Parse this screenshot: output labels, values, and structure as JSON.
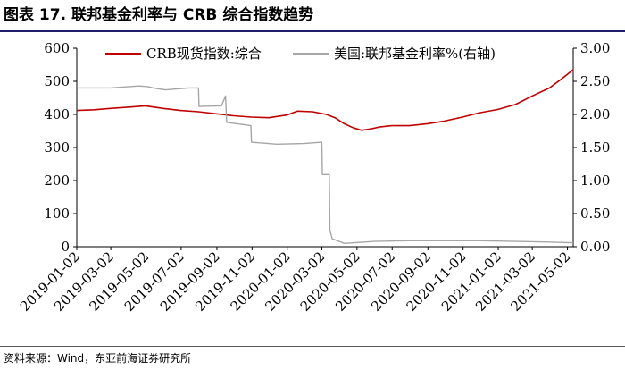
{
  "figure": {
    "title": "图表 17. 联邦基金利率与 CRB 综合指数趋势",
    "source": "资料来源：Wind，东亚前海证券研究所"
  },
  "colors": {
    "crb": "#c00000",
    "fedfunds": "#a6a6a6",
    "title_rule": "#1f1f6b"
  },
  "chart_data": {
    "type": "line",
    "x_tick_labels": [
      "2019-01-02",
      "2019-03-02",
      "2019-05-02",
      "2019-07-02",
      "2019-09-02",
      "2019-11-02",
      "2020-01-02",
      "2020-03-02",
      "2020-05-02",
      "2020-07-02",
      "2020-09-02",
      "2020-11-02",
      "2021-01-02",
      "2021-03-02",
      "2021-05-02"
    ],
    "xlim": [
      "2019-01-02",
      "2021-05-12"
    ],
    "y_left": {
      "ylim": [
        0,
        600
      ],
      "ticks": [
        "0",
        "100",
        "200",
        "300",
        "400",
        "500",
        "600"
      ]
    },
    "y_right": {
      "ylim": [
        0,
        3.0
      ],
      "ticks": [
        "0.00",
        "0.50",
        "1.00",
        "1.50",
        "2.00",
        "2.50",
        "3.00"
      ]
    },
    "legend_position": "top",
    "grid": false,
    "series": [
      {
        "name": "CRB现货指数:综合",
        "axis": "left",
        "color": "#c00000",
        "points": [
          [
            "2019-01-02",
            412
          ],
          [
            "2019-02-01",
            414
          ],
          [
            "2019-03-01",
            418
          ],
          [
            "2019-04-01",
            422
          ],
          [
            "2019-05-01",
            426
          ],
          [
            "2019-06-01",
            418
          ],
          [
            "2019-07-01",
            412
          ],
          [
            "2019-08-01",
            408
          ],
          [
            "2019-09-01",
            402
          ],
          [
            "2019-10-01",
            396
          ],
          [
            "2019-11-01",
            392
          ],
          [
            "2019-12-01",
            390
          ],
          [
            "2020-01-01",
            398
          ],
          [
            "2020-01-20",
            410
          ],
          [
            "2020-02-15",
            408
          ],
          [
            "2020-03-10",
            400
          ],
          [
            "2020-03-25",
            390
          ],
          [
            "2020-04-10",
            372
          ],
          [
            "2020-04-25",
            360
          ],
          [
            "2020-05-10",
            352
          ],
          [
            "2020-05-25",
            356
          ],
          [
            "2020-06-10",
            362
          ],
          [
            "2020-07-01",
            366
          ],
          [
            "2020-08-01",
            366
          ],
          [
            "2020-09-01",
            372
          ],
          [
            "2020-10-01",
            380
          ],
          [
            "2020-11-01",
            392
          ],
          [
            "2020-12-01",
            405
          ],
          [
            "2021-01-01",
            415
          ],
          [
            "2021-02-01",
            430
          ],
          [
            "2021-03-01",
            455
          ],
          [
            "2021-04-01",
            480
          ],
          [
            "2021-04-20",
            505
          ],
          [
            "2021-05-01",
            520
          ],
          [
            "2021-05-12",
            535
          ]
        ]
      },
      {
        "name": "美国:联邦基金利率%(右轴)",
        "axis": "right",
        "color": "#a6a6a6",
        "points": [
          [
            "2019-01-02",
            2.4
          ],
          [
            "2019-03-01",
            2.4
          ],
          [
            "2019-04-20",
            2.43
          ],
          [
            "2019-05-05",
            2.42
          ],
          [
            "2019-05-20",
            2.39
          ],
          [
            "2019-06-05",
            2.37
          ],
          [
            "2019-07-15",
            2.4
          ],
          [
            "2019-08-01",
            2.4
          ],
          [
            "2019-08-02",
            2.12
          ],
          [
            "2019-09-10",
            2.13
          ],
          [
            "2019-09-17",
            2.28
          ],
          [
            "2019-09-19",
            1.88
          ],
          [
            "2019-10-15",
            1.85
          ],
          [
            "2019-10-31",
            1.83
          ],
          [
            "2019-11-01",
            1.58
          ],
          [
            "2019-12-15",
            1.55
          ],
          [
            "2020-01-31",
            1.56
          ],
          [
            "2020-03-02",
            1.58
          ],
          [
            "2020-03-03",
            1.09
          ],
          [
            "2020-03-15",
            1.09
          ],
          [
            "2020-03-16",
            0.25
          ],
          [
            "2020-03-20",
            0.12
          ],
          [
            "2020-04-10",
            0.05
          ],
          [
            "2020-06-01",
            0.08
          ],
          [
            "2020-08-01",
            0.09
          ],
          [
            "2020-10-01",
            0.09
          ],
          [
            "2020-12-01",
            0.09
          ],
          [
            "2021-02-01",
            0.08
          ],
          [
            "2021-04-01",
            0.07
          ],
          [
            "2021-05-12",
            0.06
          ]
        ]
      }
    ]
  }
}
